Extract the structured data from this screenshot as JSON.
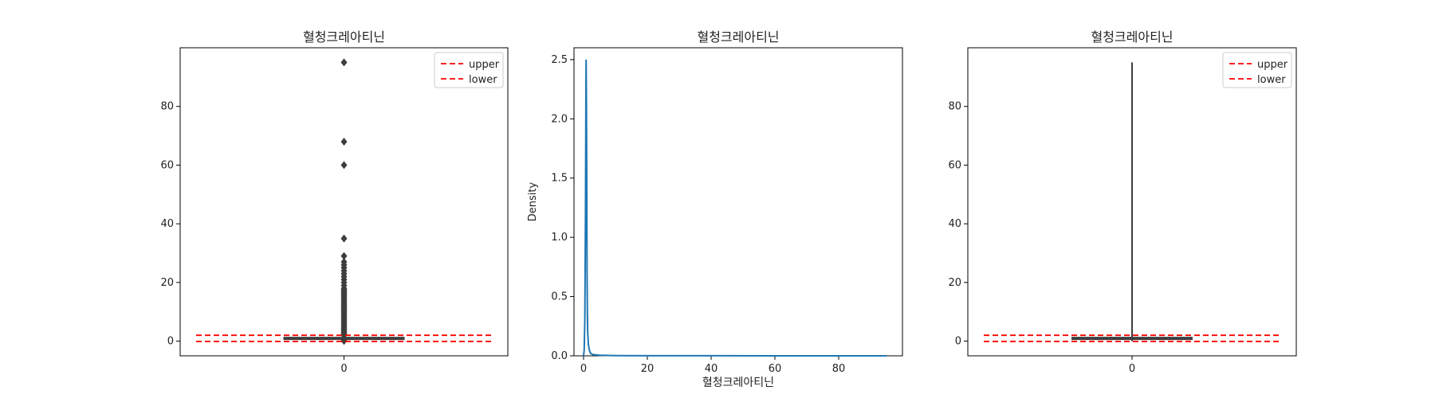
{
  "chart_data": [
    {
      "type": "box",
      "title": "혈청크레아티닌",
      "xlabel": "",
      "ylabel": "",
      "categories": [
        "0"
      ],
      "ylim": [
        -5,
        100
      ],
      "yticks": [
        0,
        20,
        40,
        60,
        80
      ],
      "box": {
        "whisker_low": 0.5,
        "q1": 0.8,
        "median": 1.0,
        "q3": 1.2,
        "whisker_high": 1.8
      },
      "outliers": [
        95,
        68,
        60,
        35,
        29,
        27,
        26,
        25,
        24,
        23,
        22,
        21,
        20,
        19,
        18,
        17.5,
        17,
        16.5,
        16,
        15.5,
        15,
        14.5,
        14,
        13.5,
        13,
        12.5,
        12,
        11.5,
        11,
        10.5,
        10,
        9.5,
        9,
        8.5,
        8,
        7.5,
        7,
        6.5,
        6,
        5.5,
        5,
        4.5,
        4,
        3.5,
        3,
        2.5,
        2.2,
        2.0,
        0.1,
        0.2
      ],
      "reference_lines": [
        {
          "name": "upper",
          "value": 2.0,
          "color": "#ff0000"
        },
        {
          "name": "lower",
          "value": -0.1,
          "color": "#ff0000"
        }
      ],
      "legend": {
        "placement": "top-right",
        "entries": [
          "upper",
          "lower"
        ]
      },
      "grid": false
    },
    {
      "type": "line",
      "title": "혈청크레아티닌",
      "xlabel": "혈청크레아티닌",
      "ylabel": "Density",
      "xlim": [
        -3,
        100
      ],
      "ylim": [
        0,
        2.6
      ],
      "xticks": [
        0,
        20,
        40,
        60,
        80
      ],
      "yticks": [
        0.0,
        0.5,
        1.0,
        1.5,
        2.0,
        2.5
      ],
      "ytick_labels": [
        "0.0",
        "0.5",
        "1.0",
        "1.5",
        "2.0",
        "2.5"
      ],
      "color": "#1f77b4",
      "x": [
        0,
        0.2,
        0.4,
        0.5,
        0.6,
        0.7,
        0.75,
        0.8,
        0.9,
        1.0,
        1.05,
        1.1,
        1.2,
        1.3,
        1.5,
        1.8,
        2.2,
        3,
        5,
        10,
        20,
        40,
        60,
        80,
        95
      ],
      "y": [
        0.0,
        0.05,
        0.3,
        0.75,
        1.2,
        1.9,
        2.3,
        2.5,
        2.1,
        1.5,
        1.0,
        0.7,
        0.35,
        0.2,
        0.1,
        0.05,
        0.02,
        0.01,
        0.005,
        0.002,
        0.001,
        0.0005,
        0.0003,
        0.0002,
        0.0001
      ],
      "grid": false
    },
    {
      "type": "box",
      "title": "혈청크레아티닌",
      "xlabel": "",
      "ylabel": "",
      "categories": [
        "0"
      ],
      "ylim": [
        -5,
        100
      ],
      "yticks": [
        0,
        20,
        40,
        60,
        80
      ],
      "box": {
        "whisker_low": 0.0,
        "q1": 0.8,
        "median": 1.0,
        "q3": 1.2,
        "whisker_high": 95
      },
      "outliers": [],
      "reference_lines": [
        {
          "name": "upper",
          "value": 2.0,
          "color": "#ff0000"
        },
        {
          "name": "lower",
          "value": -0.1,
          "color": "#ff0000"
        }
      ],
      "legend": {
        "placement": "top-right",
        "entries": [
          "upper",
          "lower"
        ]
      },
      "grid": false
    }
  ]
}
